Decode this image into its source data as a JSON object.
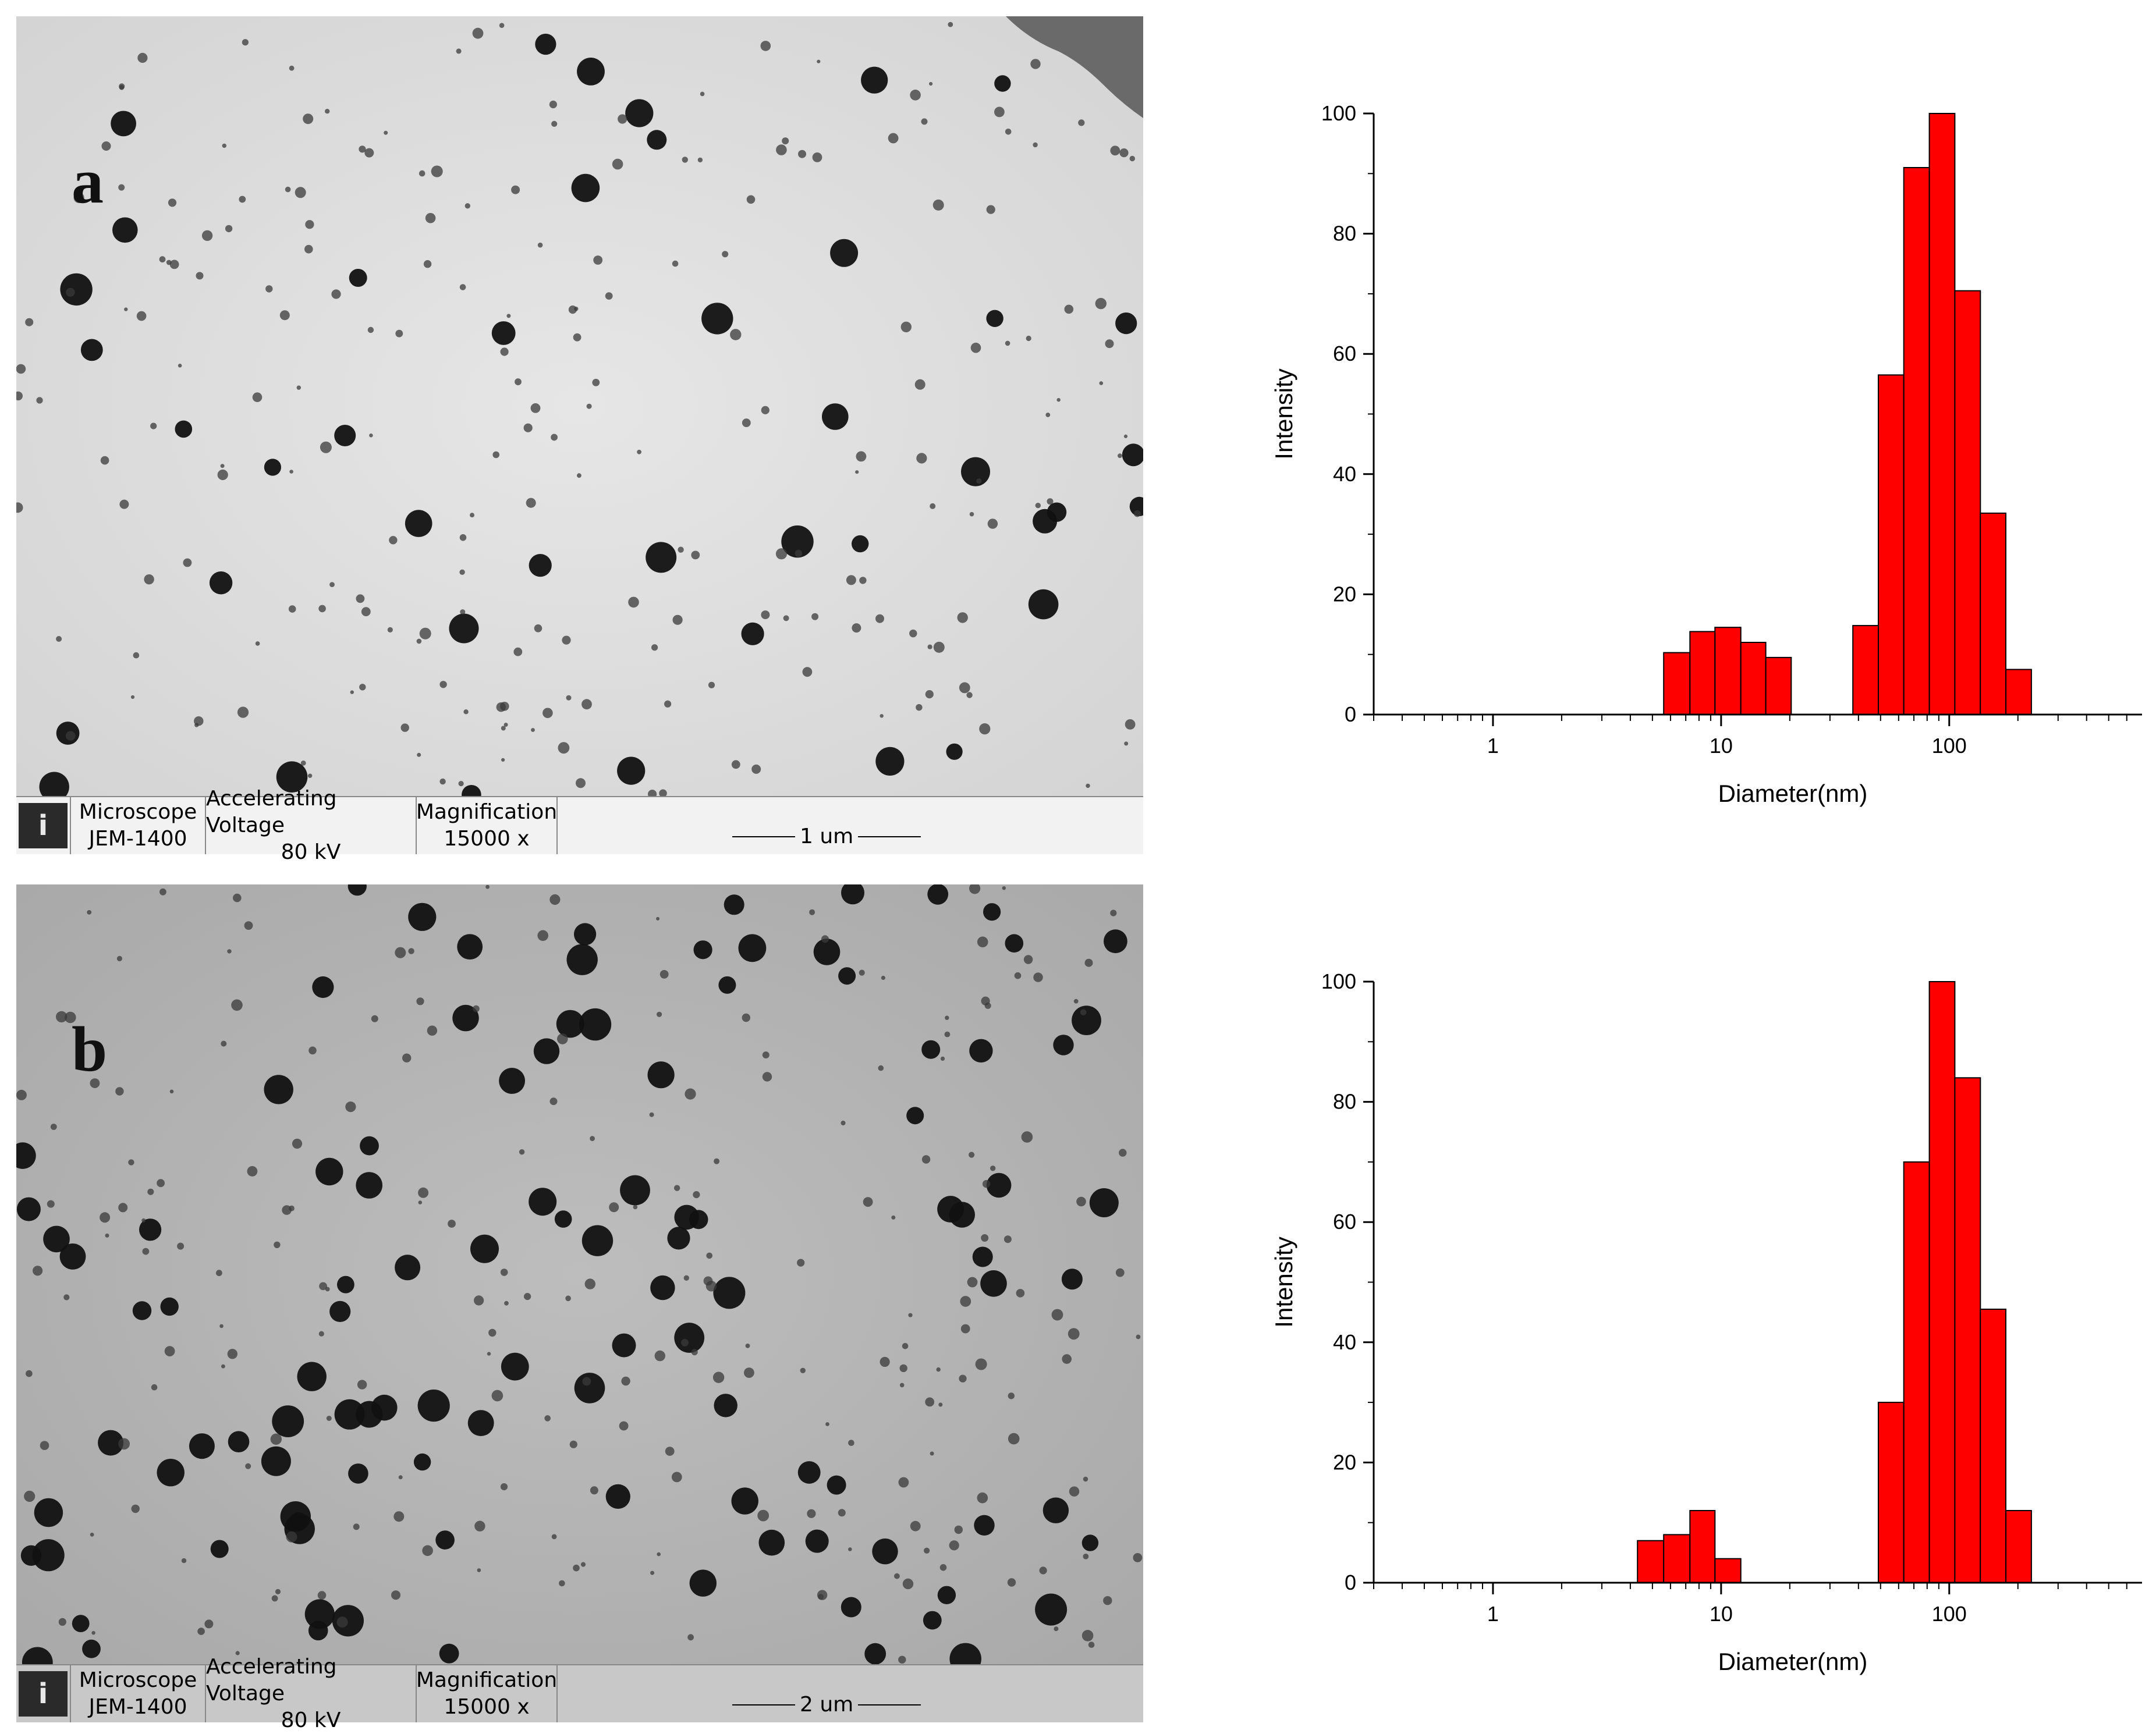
{
  "panels": [
    {
      "letter": "a",
      "info_bar": {
        "microscope_label": "Microscope",
        "microscope_value": "JEM-1400",
        "voltage_label": "Accelerating Voltage",
        "voltage_value": "80 kV",
        "magnification_label": "Magnification",
        "magnification_value": "15000 x",
        "scale_label": "1 um",
        "logo_icon": "jeol-logo-icon"
      },
      "background_color": "#e6e6e6"
    },
    {
      "letter": "b",
      "info_bar": {
        "microscope_label": "Microscope",
        "microscope_value": "JEM-1400",
        "voltage_label": "Accelerating Voltage",
        "voltage_value": "80 kV",
        "magnification_label": "Magnification",
        "magnification_value": "15000 x",
        "scale_label": "2 um",
        "logo_icon": "jeol-logo-icon"
      },
      "background_color": "#bdbdbd"
    }
  ],
  "chart_data": [
    {
      "type": "bar",
      "xscale": "log",
      "xlabel": "Diameter(nm)",
      "ylabel": "Intensity",
      "xlim": [
        0.3,
        700
      ],
      "ylim": [
        0,
        100
      ],
      "x_ticks": [
        1,
        10,
        100
      ],
      "x_tick_labels": [
        "1",
        "10",
        "100"
      ],
      "y_ticks": [
        0,
        20,
        40,
        60,
        80,
        100
      ],
      "y_tick_labels": [
        "0",
        "20",
        "40",
        "60",
        "80",
        "100"
      ],
      "bar_color": "#ff0000",
      "bars": [
        {
          "x_min": 5.6,
          "x_max": 7.3,
          "value": 10.3
        },
        {
          "x_min": 7.3,
          "x_max": 9.4,
          "value": 13.8
        },
        {
          "x_min": 9.4,
          "x_max": 12.2,
          "value": 14.5
        },
        {
          "x_min": 12.2,
          "x_max": 15.7,
          "value": 12.0
        },
        {
          "x_min": 15.7,
          "x_max": 20.3,
          "value": 9.5
        },
        {
          "x_min": 37.8,
          "x_max": 48.9,
          "value": 14.8
        },
        {
          "x_min": 48.9,
          "x_max": 63.2,
          "value": 56.5
        },
        {
          "x_min": 63.2,
          "x_max": 81.8,
          "value": 91.0
        },
        {
          "x_min": 81.8,
          "x_max": 105.8,
          "value": 100.0
        },
        {
          "x_min": 105.8,
          "x_max": 136.9,
          "value": 70.5
        },
        {
          "x_min": 136.9,
          "x_max": 177.1,
          "value": 33.5
        },
        {
          "x_min": 177.1,
          "x_max": 229.1,
          "value": 7.5
        }
      ]
    },
    {
      "type": "bar",
      "xscale": "log",
      "xlabel": "Diameter(nm)",
      "ylabel": "Intensity",
      "xlim": [
        0.3,
        700
      ],
      "ylim": [
        0,
        100
      ],
      "x_ticks": [
        1,
        10,
        100
      ],
      "x_tick_labels": [
        "1",
        "10",
        "100"
      ],
      "y_ticks": [
        0,
        20,
        40,
        60,
        80,
        100
      ],
      "y_tick_labels": [
        "0",
        "20",
        "40",
        "60",
        "80",
        "100"
      ],
      "bar_color": "#ff0000",
      "bars": [
        {
          "x_min": 4.3,
          "x_max": 5.6,
          "value": 7.0
        },
        {
          "x_min": 5.6,
          "x_max": 7.3,
          "value": 8.0
        },
        {
          "x_min": 7.3,
          "x_max": 9.4,
          "value": 12.0
        },
        {
          "x_min": 9.4,
          "x_max": 12.2,
          "value": 4.0
        },
        {
          "x_min": 48.9,
          "x_max": 63.2,
          "value": 30.0
        },
        {
          "x_min": 63.2,
          "x_max": 81.8,
          "value": 70.0
        },
        {
          "x_min": 81.8,
          "x_max": 105.8,
          "value": 100.0
        },
        {
          "x_min": 105.8,
          "x_max": 136.9,
          "value": 84.0
        },
        {
          "x_min": 136.9,
          "x_max": 177.1,
          "value": 45.5
        },
        {
          "x_min": 177.1,
          "x_max": 229.1,
          "value": 12.0
        }
      ]
    }
  ]
}
